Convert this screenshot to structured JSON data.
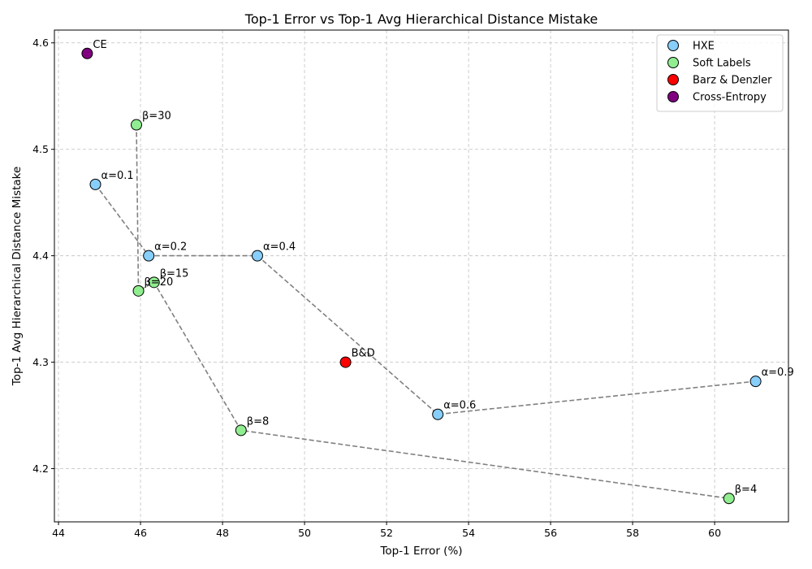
{
  "chart_data": {
    "type": "scatter",
    "title": "Top-1 Error vs Top-1 Avg Hierarchical Distance Mistake",
    "xlabel": "Top-1 Error (%)",
    "ylabel": "Top-1 Avg Hierarchical Distance Mistake",
    "xlim": [
      43.9,
      61.8
    ],
    "ylim": [
      4.15,
      4.612
    ],
    "xticks": [
      44,
      46,
      48,
      50,
      52,
      54,
      56,
      58,
      60
    ],
    "yticks": [
      4.2,
      4.3,
      4.4,
      4.5,
      4.6
    ],
    "grid": true,
    "legend_position": "top-right",
    "series": [
      {
        "name": "HXE",
        "color": "#87cefa",
        "connected": true,
        "points": [
          {
            "x": 44.9,
            "y": 4.467,
            "label": "α=0.1"
          },
          {
            "x": 46.2,
            "y": 4.4,
            "label": "α=0.2"
          },
          {
            "x": 48.85,
            "y": 4.4,
            "label": "α=0.4"
          },
          {
            "x": 53.25,
            "y": 4.251,
            "label": "α=0.6"
          },
          {
            "x": 61.0,
            "y": 4.282,
            "label": "α=0.9"
          }
        ]
      },
      {
        "name": "Soft Labels",
        "color": "#90ee90",
        "connected": true,
        "points": [
          {
            "x": 45.9,
            "y": 4.523,
            "label": "β=30"
          },
          {
            "x": 45.95,
            "y": 4.367,
            "label": "β=20"
          },
          {
            "x": 46.33,
            "y": 4.375,
            "label": "β=15"
          },
          {
            "x": 48.45,
            "y": 4.236,
            "label": "β=8"
          },
          {
            "x": 60.35,
            "y": 4.172,
            "label": "β=4"
          }
        ]
      },
      {
        "name": "Barz & Denzler",
        "color": "#ff0000",
        "connected": false,
        "points": [
          {
            "x": 51.0,
            "y": 4.3,
            "label": "B&D"
          }
        ]
      },
      {
        "name": "Cross-Entropy",
        "color": "#800080",
        "connected": false,
        "points": [
          {
            "x": 44.7,
            "y": 4.59,
            "label": "CE"
          }
        ]
      }
    ]
  }
}
